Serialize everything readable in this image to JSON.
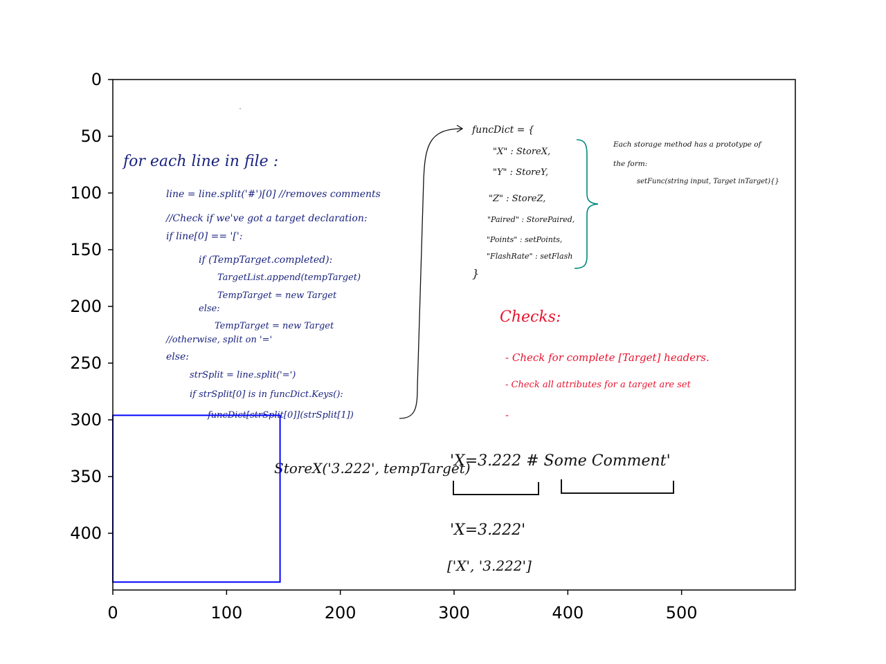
{
  "chart_data": {
    "type": "image",
    "xlim": [
      0,
      600
    ],
    "ylim": [
      450,
      0
    ],
    "x_ticks": [
      0,
      100,
      200,
      300,
      400,
      500
    ],
    "y_ticks": [
      0,
      50,
      100,
      150,
      200,
      250,
      300,
      350,
      400
    ],
    "x_tick_labels": [
      "0",
      "100",
      "200",
      "300",
      "400",
      "500"
    ],
    "y_tick_labels": [
      "0",
      "50",
      "100",
      "150",
      "200",
      "250",
      "300",
      "350",
      "400"
    ],
    "grid": false,
    "overlay_rectangle": {
      "x0": 0,
      "y0": 296,
      "x1": 147,
      "y1": 443,
      "color": "#0000ff"
    }
  },
  "handwriting": {
    "code": [
      "for each line in file :",
      "line = line.split('#')[0] //removes comments",
      "//Check if we've got a target declaration:",
      "if line[0] == '[':",
      "if (TempTarget.completed):",
      "TargetList.append(tempTarget)",
      "TempTarget = new Target",
      "else:",
      "TempTarget = new Target",
      "//otherwise, split on '='",
      "else:",
      "strSplit = line.split('=')",
      "if strSplit[0] is in funcDict.Keys():",
      "funcDict[strSplit[0]](strSplit[1])"
    ],
    "dict": [
      "funcDict = {",
      "\"X\" : StoreX,",
      "\"Y\" : StoreY,",
      "\"Z\" : StoreZ,",
      "\"Paired\" : StorePaired,",
      "\"Points\" : setPoints,",
      "\"FlashRate\" : setFlash",
      "}"
    ],
    "note": [
      "Each storage method has a prototype of",
      "the form:",
      "setFunc(string input, Target inTarget){}"
    ],
    "checks": [
      "Checks:",
      "- Check for complete [Target] headers.",
      "- Check all attributes for a target are set",
      "-"
    ],
    "example": {
      "call": "StoreX('3.222', tempTarget)",
      "line": "'X=3.222 # Some Comment'",
      "left_part": "'X=3.222'",
      "split": "['X', '3.222']"
    }
  },
  "colors": {
    "code": "#1a237e",
    "dict": "#111111",
    "brace": "#00897b",
    "checks": "#e8132e",
    "rectangle": "#0000ff",
    "axes": "#000000"
  }
}
